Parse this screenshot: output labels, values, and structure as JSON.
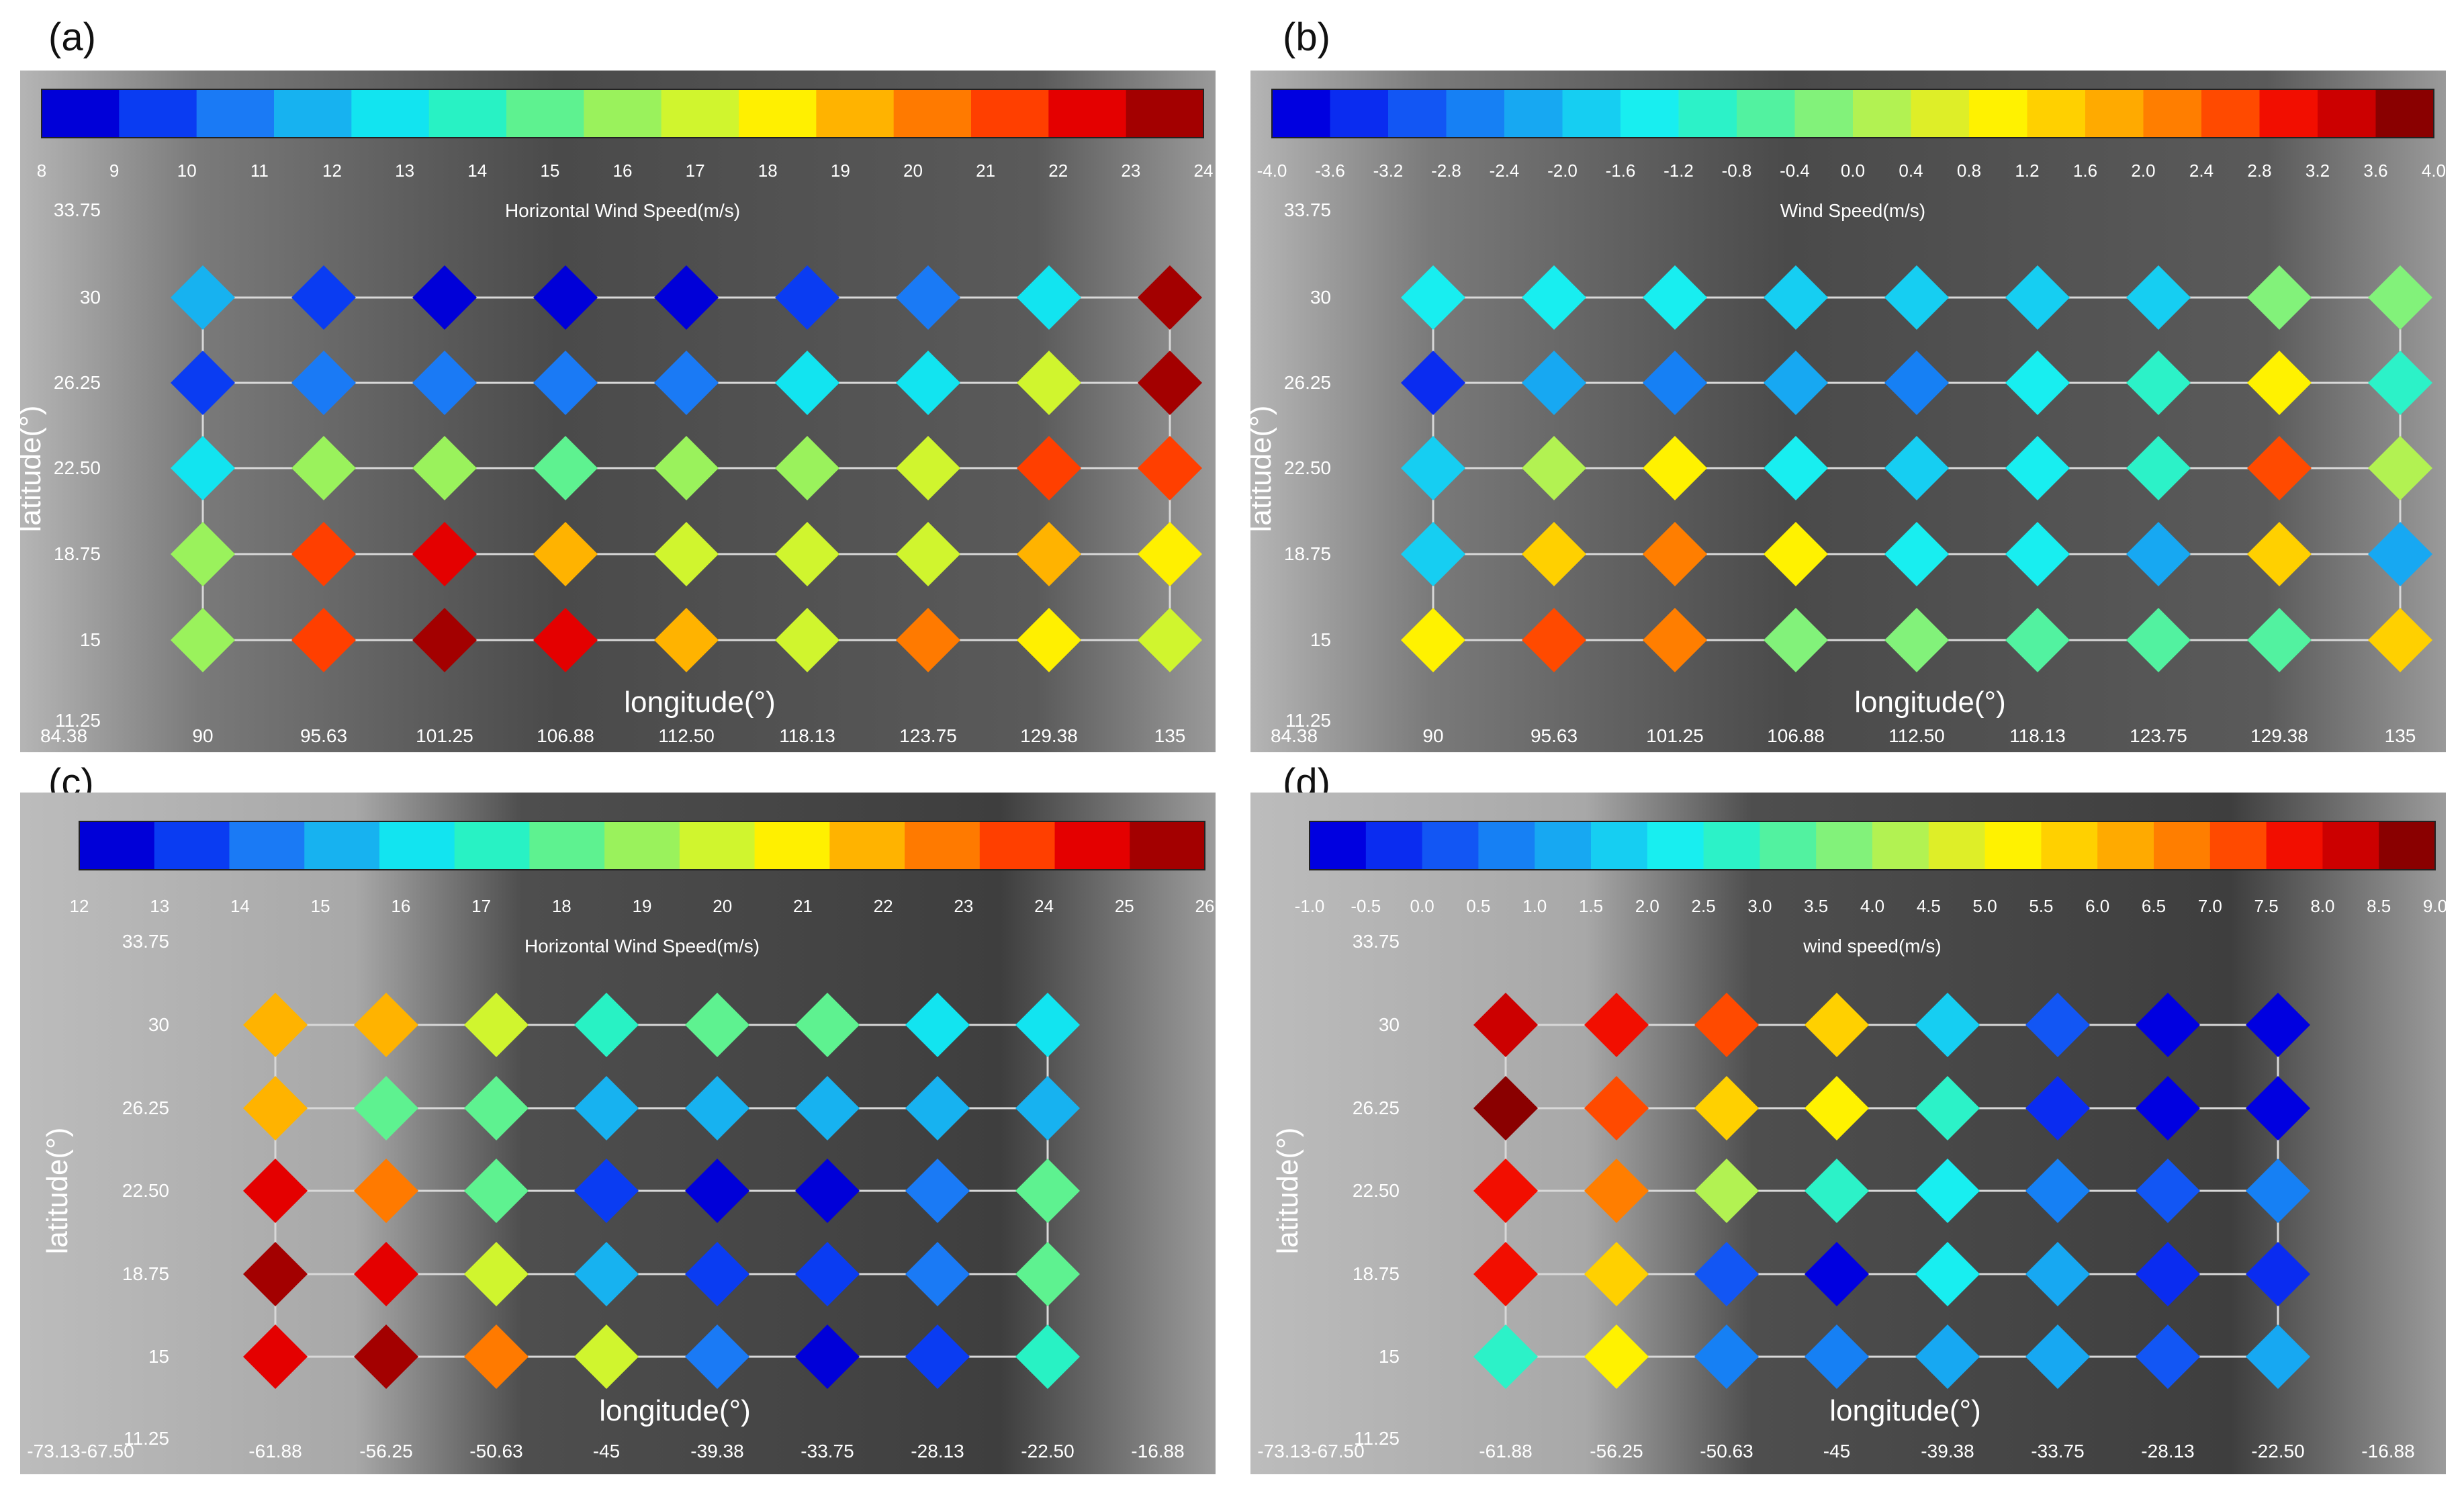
{
  "colors": {
    "palette15": [
      "#0000d8",
      "#0a3cf2",
      "#1a7af5",
      "#17b2f0",
      "#12e4f0",
      "#28f2c4",
      "#5ef290",
      "#9af25c",
      "#d0f52e",
      "#fff000",
      "#ffb300",
      "#ff7a00",
      "#ff3f00",
      "#e40000",
      "#a30000"
    ],
    "palette20": [
      "#0000e0",
      "#0a2cf0",
      "#1256f4",
      "#1680f4",
      "#17a8f2",
      "#16cef2",
      "#18eef0",
      "#2cf2c8",
      "#52f2a0",
      "#82f27a",
      "#b2f252",
      "#deee28",
      "#fff200",
      "#ffd000",
      "#ffaa00",
      "#ff7e00",
      "#ff4a00",
      "#f20e00",
      "#cc0000",
      "#8a0000"
    ],
    "map_dark": "#4a4a4a",
    "map_light": "#b5b5b5",
    "grid_line": "#d8d8d8",
    "axis_text": "#ffffff"
  },
  "chart_data": [
    {
      "panel_label": "(a)",
      "type": "heatmap",
      "title": "Horizontal Wind Speed(m/s)",
      "xlabel": "longitude(°)",
      "ylabel": "latitude(°)",
      "colorbar_ticks": [
        "8",
        "9",
        "10",
        "11",
        "12",
        "13",
        "14",
        "15",
        "16",
        "17",
        "18",
        "19",
        "20",
        "21",
        "22",
        "23",
        "24"
      ],
      "colorbar_range": [
        8,
        24
      ],
      "palette": "palette15",
      "x_tick_labels": [
        "84.38",
        "90",
        "95.63",
        "101.25",
        "106.88",
        "112.50",
        "118.13",
        "123.75",
        "129.38",
        "135"
      ],
      "y_tick_labels": [
        "33.75",
        "30",
        "26.25",
        "22.50",
        "18.75",
        "15",
        "11.25"
      ],
      "y_rows": [
        30,
        26.25,
        22.5,
        18.75,
        15
      ],
      "x_cols": [
        90,
        95.63,
        101.25,
        106.88,
        112.5,
        118.13,
        123.75,
        129.38,
        135
      ],
      "values": [
        [
          11.8,
          10.0,
          9.0,
          8.6,
          8.8,
          9.6,
          11.0,
          12.5,
          23.2
        ],
        [
          9.5,
          10.6,
          10.4,
          10.4,
          11.2,
          12.4,
          13.2,
          17.3,
          23.2
        ],
        [
          12.6,
          15.6,
          16.5,
          14.5,
          15.5,
          16.5,
          16.7,
          21.2,
          21.2
        ],
        [
          16.5,
          21.0,
          22.8,
          19.7,
          17.4,
          17.3,
          16.7,
          19.5,
          18.3
        ],
        [
          16.4,
          21.0,
          23.8,
          22.5,
          19.6,
          17.3,
          19.8,
          18.4,
          17.4
        ]
      ]
    },
    {
      "panel_label": "(b)",
      "type": "heatmap",
      "title": "Wind Speed(m/s)",
      "xlabel": "longitude(°)",
      "ylabel": "latitude(°)",
      "colorbar_ticks": [
        "-4.0",
        "-3.6",
        "-3.2",
        "-2.8",
        "-2.4",
        "-2.0",
        "-1.6",
        "-1.2",
        "-0.8",
        "-0.4",
        "0.0",
        "0.4",
        "0.8",
        "1.2",
        "1.6",
        "2.0",
        "2.4",
        "2.8",
        "3.2",
        "3.6",
        "4.0"
      ],
      "colorbar_range": [
        -4.0,
        4.0
      ],
      "palette": "palette20",
      "x_tick_labels": [
        "84.38",
        "90",
        "95.63",
        "101.25",
        "106.88",
        "112.50",
        "118.13",
        "123.75",
        "129.38",
        "135"
      ],
      "y_tick_labels": [
        "33.75",
        "30",
        "26.25",
        "22.50",
        "18.75",
        "15",
        "11.25"
      ],
      "y_rows": [
        30,
        26.25,
        22.5,
        18.75,
        15
      ],
      "x_cols": [
        90,
        95.63,
        101.25,
        106.88,
        112.5,
        118.13,
        123.75,
        129.38,
        135
      ],
      "values": [
        [
          -1.4,
          -1.4,
          -1.4,
          -1.7,
          -1.7,
          -1.8,
          -1.8,
          -0.1,
          -0.1
        ],
        [
          -3.3,
          -2.2,
          -2.5,
          -2.3,
          -2.5,
          -1.4,
          -1.0,
          0.9,
          -1.0
        ],
        [
          -1.8,
          0.2,
          0.9,
          -1.4,
          -1.8,
          -1.4,
          -1.0,
          2.5,
          0.1
        ],
        [
          -2.0,
          1.3,
          2.0,
          0.9,
          -1.4,
          -1.4,
          -2.3,
          1.3,
          -2.3
        ],
        [
          0.9,
          2.7,
          2.0,
          -0.1,
          -0.1,
          -0.8,
          -0.8,
          -0.5,
          1.2
        ]
      ]
    },
    {
      "panel_label": "(c)",
      "type": "heatmap",
      "title": "Horizontal Wind Speed(m/s)",
      "xlabel": "longitude(°)",
      "ylabel": "latitude(°)",
      "colorbar_ticks": [
        "12",
        "13",
        "14",
        "15",
        "16",
        "17",
        "18",
        "19",
        "20",
        "21",
        "22",
        "23",
        "24",
        "25",
        "26"
      ],
      "colorbar_range": [
        12,
        26
      ],
      "palette": "palette15",
      "x_tick_labels": [
        "-73.13",
        "-67.50",
        "-61.88",
        "-56.25",
        "-50.63",
        "-45",
        "-39.38",
        "-33.75",
        "-28.13",
        "-22.50",
        "-16.88"
      ],
      "y_tick_labels": [
        "33.75",
        "30",
        "26.25",
        "22.50",
        "18.75",
        "15",
        "11.25"
      ],
      "y_rows": [
        30,
        26.25,
        22.5,
        18.75,
        15
      ],
      "x_cols": [
        -61.88,
        -56.25,
        -50.63,
        -45,
        -39.38,
        -33.75,
        -28.13,
        -22.5
      ],
      "values": [
        [
          22.2,
          21.5,
          20.2,
          17.4,
          18.3,
          18.4,
          16.4,
          16.5
        ],
        [
          21.5,
          18.5,
          17.6,
          15.3,
          15.3,
          15.3,
          15.3,
          15.3
        ],
        [
          24.3,
          22.3,
          18.3,
          13.3,
          12.4,
          12.6,
          14.3,
          18.5
        ],
        [
          25.8,
          24.8,
          20.3,
          15.3,
          13.4,
          13.4,
          14.3,
          18.5
        ],
        [
          24.8,
          25.8,
          22.3,
          20.3,
          14.3,
          12.6,
          13.4,
          17.5
        ]
      ]
    },
    {
      "panel_label": "(d)",
      "type": "heatmap",
      "title": "wind speed(m/s)",
      "xlabel": "longitude(°)",
      "ylabel": "latitude(°)",
      "colorbar_ticks": [
        "-1.0",
        "-0.5",
        "0.0",
        "0.5",
        "1.0",
        "1.5",
        "2.0",
        "2.5",
        "3.0",
        "3.5",
        "4.0",
        "4.5",
        "5.0",
        "5.5",
        "6.0",
        "6.5",
        "7.0",
        "7.5",
        "8.0",
        "8.5",
        "9.0"
      ],
      "colorbar_range": [
        -1.0,
        9.0
      ],
      "palette": "palette20",
      "x_tick_labels": [
        "-73.13",
        "-67.50",
        "-61.88",
        "-56.25",
        "-50.63",
        "-45",
        "-39.38",
        "-33.75",
        "-28.13",
        "-22.50",
        "-16.88"
      ],
      "y_tick_labels": [
        "33.75",
        "30",
        "26.25",
        "22.50",
        "18.75",
        "15",
        "11.25"
      ],
      "y_rows": [
        30,
        26.25,
        22.5,
        18.75,
        15
      ],
      "x_cols": [
        -61.88,
        -56.25,
        -50.63,
        -45,
        -39.38,
        -33.75,
        -28.13,
        -22.5
      ],
      "values": [
        [
          8.2,
          7.7,
          7.2,
          5.7,
          1.7,
          0.2,
          -0.7,
          -0.8
        ],
        [
          8.8,
          7.2,
          5.8,
          5.2,
          2.7,
          -0.3,
          -0.8,
          -0.8
        ],
        [
          7.7,
          6.7,
          4.2,
          2.7,
          2.2,
          0.7,
          0.2,
          0.7
        ],
        [
          7.7,
          5.8,
          0.2,
          -0.7,
          2.2,
          1.2,
          -0.3,
          -0.3
        ],
        [
          2.7,
          5.2,
          0.7,
          0.7,
          1.2,
          1.2,
          0.2,
          1.2
        ]
      ]
    }
  ]
}
